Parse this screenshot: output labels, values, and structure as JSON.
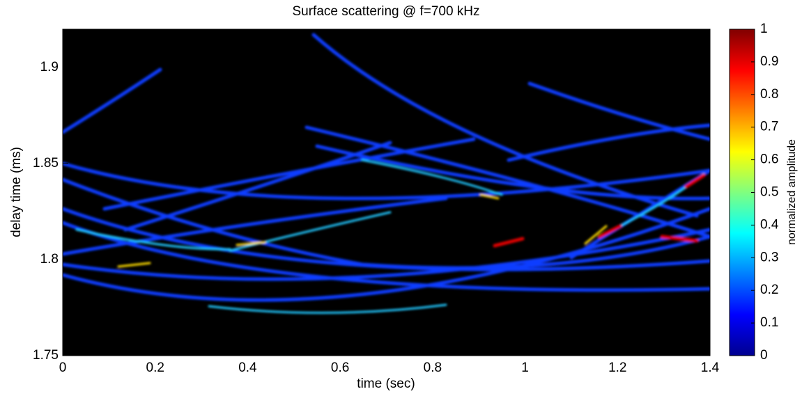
{
  "chart_data": {
    "type": "heatmap",
    "title": "Surface scattering @ f=700 kHz",
    "xlabel": "time (sec)",
    "ylabel": "delay time (ms)",
    "xlim": [
      0,
      1.4
    ],
    "xticks": [
      0,
      0.2,
      0.4,
      0.6,
      0.8,
      1,
      1.2,
      1.4
    ],
    "ylim": [
      1.75,
      1.92
    ],
    "yticks": [
      1.75,
      1.8,
      1.85,
      1.9
    ],
    "colorbar": {
      "label": "normalized amplitude",
      "colormap": "jet",
      "lim": [
        0,
        1
      ],
      "ticks": [
        0,
        0.1,
        0.2,
        0.3,
        0.4,
        0.5,
        0.6,
        0.7,
        0.8,
        0.9,
        1
      ]
    }
  }
}
